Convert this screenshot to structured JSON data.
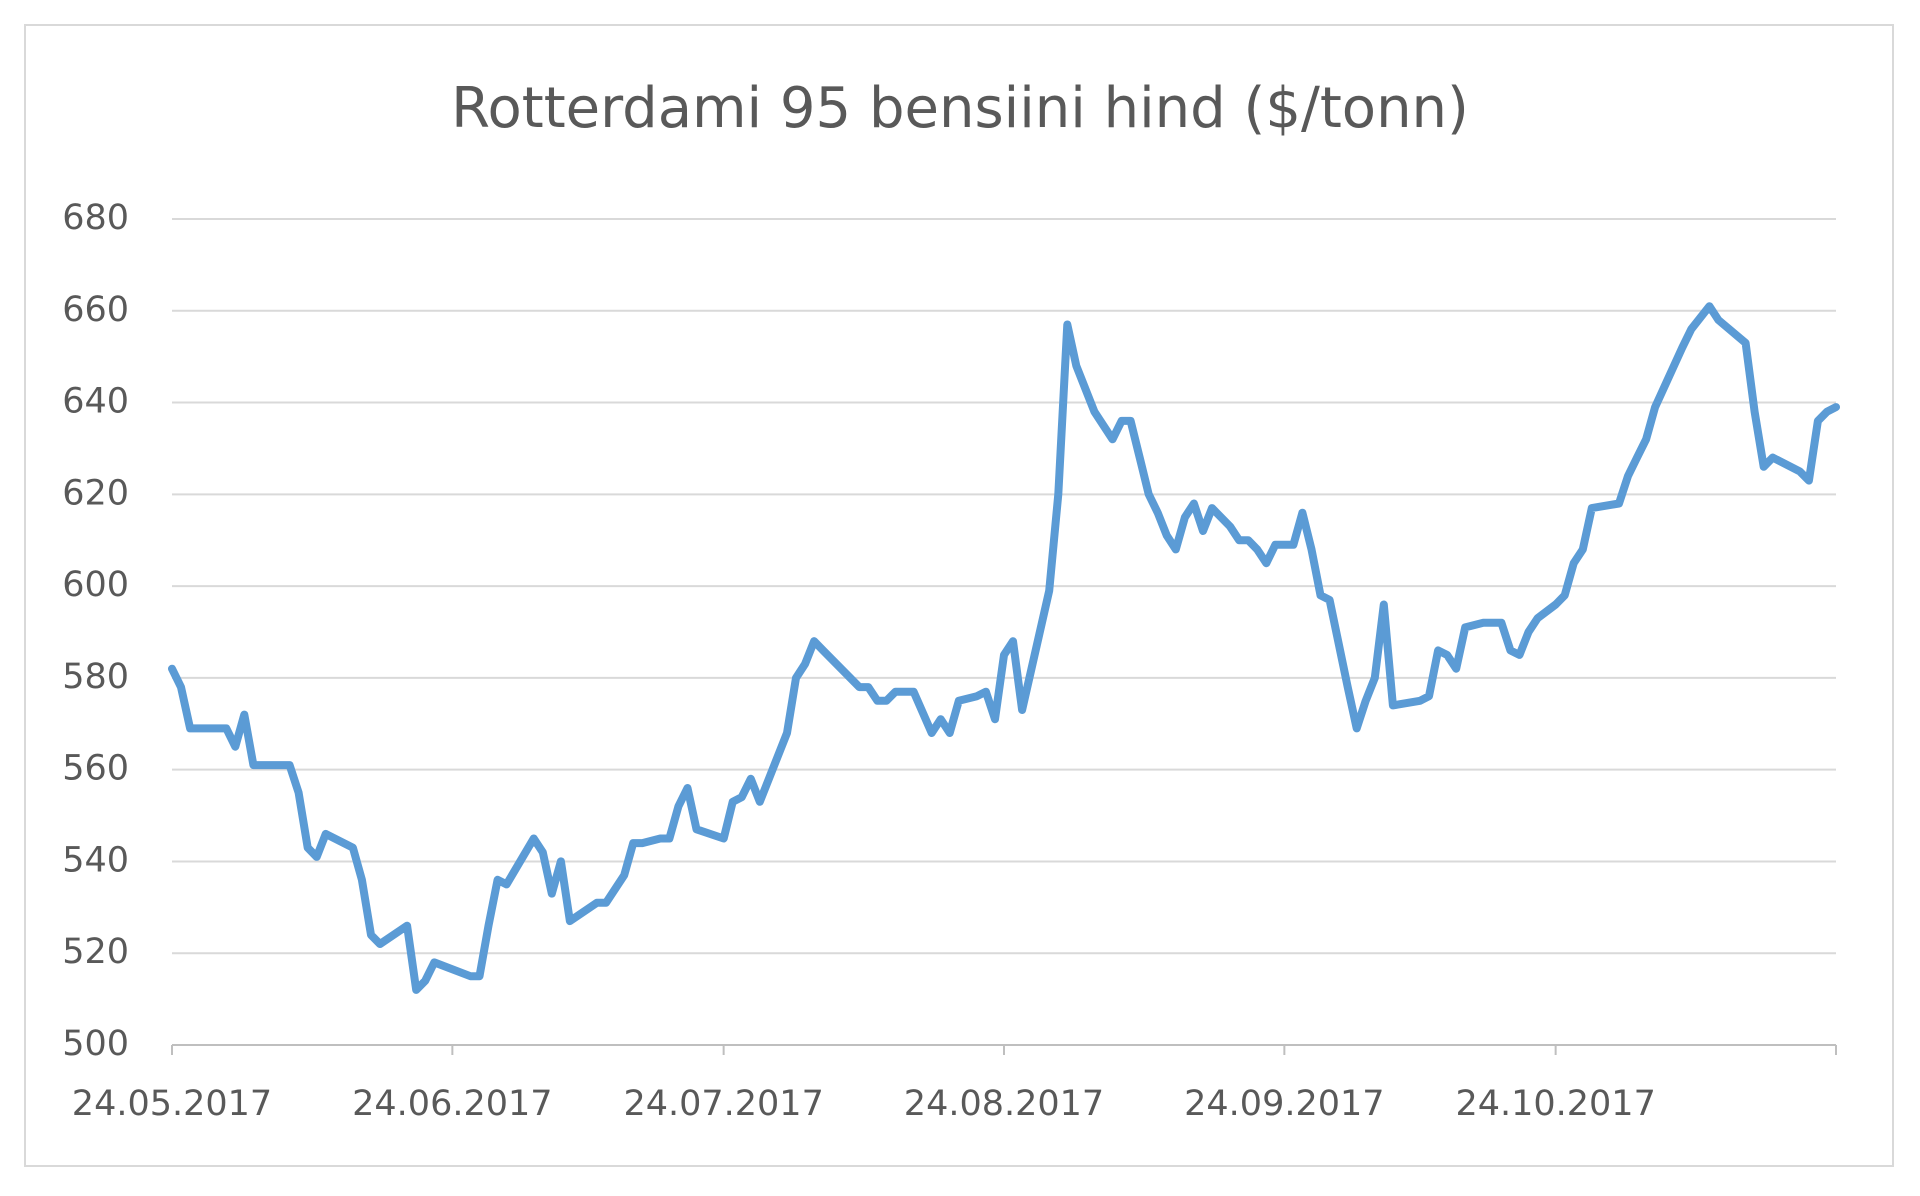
{
  "chart_data": {
    "type": "line",
    "title": "Rotterdami 95 bensiini hind ($/tonn)",
    "x": [
      "2017-05-24",
      "2017-05-25",
      "2017-05-26",
      "2017-05-30",
      "2017-05-31",
      "2017-06-01",
      "2017-06-02",
      "2017-06-06",
      "2017-06-07",
      "2017-06-08",
      "2017-06-09",
      "2017-06-10",
      "2017-06-13",
      "2017-06-14",
      "2017-06-15",
      "2017-06-16",
      "2017-06-19",
      "2017-06-20",
      "2017-06-21",
      "2017-06-22",
      "2017-06-26",
      "2017-06-27",
      "2017-06-28",
      "2017-06-29",
      "2017-06-30",
      "2017-07-03",
      "2017-07-04",
      "2017-07-05",
      "2017-07-06",
      "2017-07-07",
      "2017-07-10",
      "2017-07-11",
      "2017-07-13",
      "2017-07-14",
      "2017-07-15",
      "2017-07-17",
      "2017-07-18",
      "2017-07-19",
      "2017-07-20",
      "2017-07-21",
      "2017-07-24",
      "2017-07-25",
      "2017-07-26",
      "2017-07-27",
      "2017-07-28",
      "2017-07-31",
      "2017-08-01",
      "2017-08-02",
      "2017-08-03",
      "2017-08-04",
      "2017-08-08",
      "2017-08-09",
      "2017-08-10",
      "2017-08-11",
      "2017-08-12",
      "2017-08-14",
      "2017-08-16",
      "2017-08-17",
      "2017-08-18",
      "2017-08-19",
      "2017-08-21",
      "2017-08-22",
      "2017-08-23",
      "2017-08-24",
      "2017-08-25",
      "2017-08-26",
      "2017-08-29",
      "2017-08-30",
      "2017-08-31",
      "2017-09-01",
      "2017-09-03",
      "2017-09-05",
      "2017-09-06",
      "2017-09-07",
      "2017-09-08",
      "2017-09-09",
      "2017-09-10",
      "2017-09-11",
      "2017-09-12",
      "2017-09-13",
      "2017-09-14",
      "2017-09-15",
      "2017-09-16",
      "2017-09-18",
      "2017-09-19",
      "2017-09-20",
      "2017-09-21",
      "2017-09-22",
      "2017-09-23",
      "2017-09-25",
      "2017-09-26",
      "2017-09-27",
      "2017-09-28",
      "2017-09-29",
      "2017-10-01",
      "2017-10-02",
      "2017-10-03",
      "2017-10-04",
      "2017-10-05",
      "2017-10-06",
      "2017-10-09",
      "2017-10-10",
      "2017-10-11",
      "2017-10-12",
      "2017-10-13",
      "2017-10-14",
      "2017-10-16",
      "2017-10-17",
      "2017-10-18",
      "2017-10-19",
      "2017-10-20",
      "2017-10-21",
      "2017-10-22",
      "2017-10-24",
      "2017-10-25",
      "2017-10-26",
      "2017-10-27",
      "2017-10-28",
      "2017-10-31",
      "2017-11-01",
      "2017-11-02",
      "2017-11-03",
      "2017-11-04",
      "2017-11-07",
      "2017-11-08",
      "2017-11-10",
      "2017-11-11",
      "2017-11-14",
      "2017-11-15",
      "2017-11-16",
      "2017-11-17",
      "2017-11-20",
      "2017-11-21",
      "2017-11-22",
      "2017-11-23",
      "2017-11-24"
    ],
    "series": [
      {
        "color": "#5b9bd5",
        "values": [
          582,
          578,
          569,
          569,
          565,
          572,
          561,
          561,
          555,
          543,
          541,
          546,
          543,
          536,
          524,
          522,
          526,
          512,
          514,
          518,
          515,
          515,
          526,
          536,
          535,
          545,
          542,
          533,
          540,
          527,
          531,
          531,
          537,
          544,
          544,
          545,
          545,
          552,
          556,
          547,
          545,
          553,
          554,
          558,
          553,
          568,
          580,
          583,
          588,
          586,
          578,
          578,
          575,
          575,
          577,
          577,
          568,
          571,
          568,
          575,
          576,
          577,
          571,
          585,
          588,
          573,
          599,
          620,
          657,
          648,
          638,
          632,
          636,
          636,
          628,
          620,
          616,
          611,
          608,
          615,
          618,
          612,
          617,
          613,
          610,
          610,
          608,
          605,
          609,
          609,
          616,
          608,
          598,
          597,
          578,
          569,
          575,
          580,
          596,
          574,
          575,
          576,
          586,
          585,
          582,
          591,
          592,
          592,
          592,
          586,
          585,
          590,
          593,
          596,
          598,
          605,
          608,
          617,
          618,
          624,
          628,
          632,
          639,
          652,
          656,
          661,
          658,
          653,
          638,
          626,
          628,
          625,
          623,
          636,
          638,
          639
        ]
      }
    ],
    "xlim": [
      "2017-05-24",
      "2017-11-24"
    ],
    "xticks": [
      {
        "value": "2017-05-24",
        "label": "24.05.2017"
      },
      {
        "value": "2017-06-24",
        "label": "24.06.2017"
      },
      {
        "value": "2017-07-24",
        "label": "24.07.2017"
      },
      {
        "value": "2017-08-24",
        "label": "24.08.2017"
      },
      {
        "value": "2017-09-24",
        "label": "24.09.2017"
      },
      {
        "value": "2017-10-24",
        "label": "24.10.2017"
      }
    ],
    "ylim": [
      500,
      680
    ],
    "yticks": [
      500,
      520,
      540,
      560,
      580,
      600,
      620,
      640,
      660,
      680
    ],
    "grid": true
  }
}
